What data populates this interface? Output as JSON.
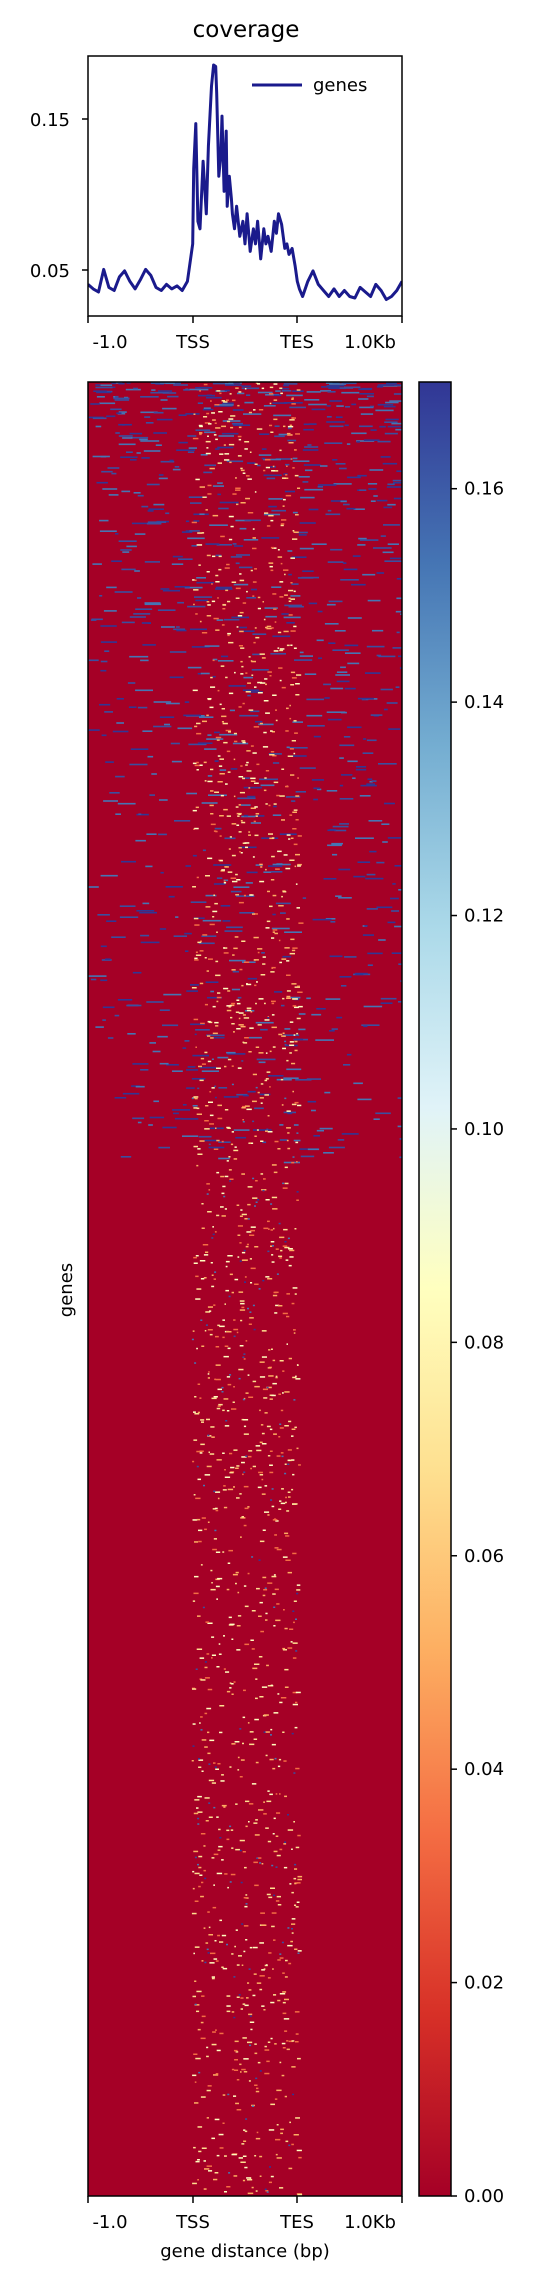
{
  "chart_data": [
    {
      "type": "line",
      "title": "coverage",
      "legend": {
        "placement": "top-right",
        "entries": [
          "genes"
        ]
      },
      "x_ticks": [
        "-1.0",
        "TSS",
        "TES",
        "1.0Kb"
      ],
      "y_ticks": [
        "0.05",
        "0.15"
      ],
      "ylim": [
        0.017,
        0.19
      ],
      "xlim": [
        0,
        300
      ],
      "series": [
        {
          "name": "genes",
          "color": "#1a1a8c",
          "x": [
            0,
            5,
            10,
            15,
            20,
            25,
            30,
            35,
            40,
            45,
            50,
            55,
            60,
            65,
            70,
            75,
            80,
            85,
            90,
            95,
            100,
            101,
            103,
            105,
            107,
            110,
            113,
            115,
            118,
            120,
            122,
            123,
            125,
            127,
            128,
            130,
            132,
            133,
            135,
            137,
            138,
            140,
            142,
            145,
            148,
            150,
            152,
            155,
            158,
            160,
            162,
            165,
            168,
            170,
            172,
            175,
            178,
            180,
            182,
            185,
            188,
            190,
            192,
            195,
            198,
            200,
            202,
            205,
            210,
            215,
            220,
            225,
            230,
            235,
            240,
            245,
            250,
            255,
            260,
            265,
            270,
            275,
            280,
            285,
            290,
            295,
            300
          ],
          "y": [
            0.038,
            0.035,
            0.033,
            0.048,
            0.036,
            0.034,
            0.043,
            0.047,
            0.04,
            0.035,
            0.041,
            0.048,
            0.044,
            0.036,
            0.034,
            0.038,
            0.035,
            0.037,
            0.034,
            0.04,
            0.065,
            0.115,
            0.145,
            0.08,
            0.075,
            0.12,
            0.085,
            0.13,
            0.17,
            0.184,
            0.183,
            0.165,
            0.11,
            0.125,
            0.15,
            0.1,
            0.14,
            0.09,
            0.11,
            0.095,
            0.085,
            0.075,
            0.09,
            0.07,
            0.08,
            0.065,
            0.085,
            0.06,
            0.075,
            0.065,
            0.08,
            0.055,
            0.075,
            0.065,
            0.07,
            0.06,
            0.08,
            0.072,
            0.085,
            0.078,
            0.062,
            0.065,
            0.058,
            0.062,
            0.05,
            0.04,
            0.035,
            0.03,
            0.04,
            0.047,
            0.038,
            0.034,
            0.03,
            0.035,
            0.03,
            0.034,
            0.03,
            0.029,
            0.036,
            0.033,
            0.03,
            0.038,
            0.034,
            0.028,
            0.03,
            0.034,
            0.04
          ]
        }
      ]
    },
    {
      "type": "heatmap",
      "ylabel": "genes",
      "xlabel": "gene distance (bp)",
      "x_ticks": [
        "-1.0",
        "TSS",
        "TES",
        "1.0Kb"
      ],
      "colormap": "RdYlBu",
      "colorbar": {
        "min": 0.0,
        "max": 0.17,
        "ticks": [
          "0.00",
          "0.02",
          "0.04",
          "0.06",
          "0.08",
          "0.10",
          "0.12",
          "0.14",
          "0.16"
        ],
        "stops": [
          "#a50026",
          "#d73027",
          "#f46d43",
          "#fdae61",
          "#fee090",
          "#ffffbf",
          "#e0f3f8",
          "#abd9e9",
          "#74add1",
          "#4575b4",
          "#313695"
        ]
      },
      "background_color": "#a50026",
      "regions": {
        "body_fraction_of_x": [
          0.33,
          0.67
        ],
        "upper_mixed_rows_fraction": 0.35,
        "notes": "Sparse high-coverage (blue) streaks concentrated in the top third across flanks; sparse yellow/orange speckles mostly within the TSS–TES gene body."
      }
    }
  ]
}
